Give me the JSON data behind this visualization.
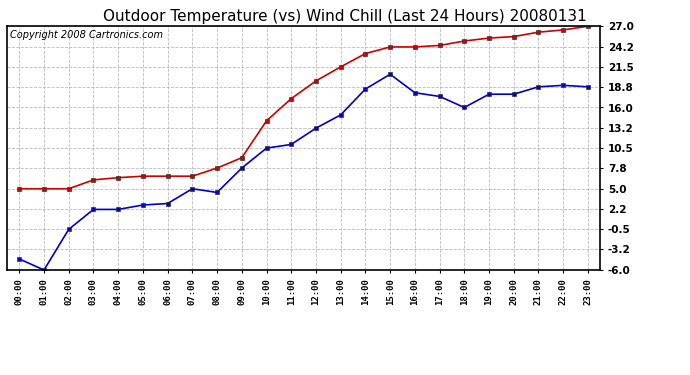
{
  "title": "Outdoor Temperature (vs) Wind Chill (Last 24 Hours) 20080131",
  "copyright": "Copyright 2008 Cartronics.com",
  "x_labels": [
    "00:00",
    "01:00",
    "02:00",
    "03:00",
    "04:00",
    "05:00",
    "06:00",
    "07:00",
    "08:00",
    "09:00",
    "10:00",
    "11:00",
    "12:00",
    "13:00",
    "14:00",
    "15:00",
    "16:00",
    "17:00",
    "18:00",
    "19:00",
    "20:00",
    "21:00",
    "22:00",
    "23:00"
  ],
  "temp_red": [
    5.0,
    5.0,
    5.0,
    6.2,
    6.5,
    6.7,
    6.7,
    6.7,
    7.8,
    9.2,
    14.2,
    17.2,
    19.6,
    21.5,
    23.3,
    24.2,
    24.2,
    24.4,
    25.0,
    25.4,
    25.6,
    26.2,
    26.5,
    27.0
  ],
  "wind_chill_blue": [
    -4.5,
    -6.0,
    -0.5,
    2.2,
    2.2,
    2.8,
    3.0,
    5.0,
    4.5,
    7.8,
    10.5,
    11.0,
    13.2,
    15.0,
    18.5,
    20.5,
    18.0,
    17.5,
    16.0,
    17.8,
    17.8,
    18.8,
    19.0,
    18.8
  ],
  "yticks": [
    27.0,
    24.2,
    21.5,
    18.8,
    16.0,
    13.2,
    10.5,
    7.8,
    5.0,
    2.2,
    -0.5,
    -3.2,
    -6.0
  ],
  "ymin": -6.0,
  "ymax": 27.0,
  "red_color": "#cc0000",
  "blue_color": "#0000cc",
  "background_color": "#ffffff",
  "plot_bg_color": "#ffffff",
  "grid_color": "#aaaaaa",
  "title_fontsize": 11,
  "copyright_fontsize": 7
}
